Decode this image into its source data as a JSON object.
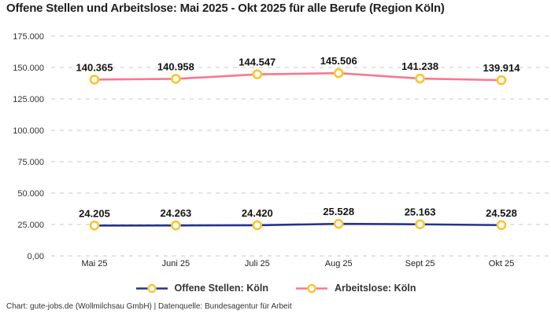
{
  "title": "Offene Stellen und Arbeitslose: Mai 2025 - Okt 2025 für alle Berufe (Region Köln)",
  "footer": "Chart: gute-jobs.de (Wollmilchsau GmbH) | Datenquelle: Bundesagentur für Arbeit",
  "colors": {
    "offene_stellen_line": "#25338c",
    "arbeitslose_line": "#f8788e",
    "marker_ring": "#fcc42d",
    "marker_fill": "#ffffff",
    "gridline": "#c8c8c8",
    "label_text": "#141414"
  },
  "chart_data": {
    "type": "line",
    "title": "Offene Stellen und Arbeitslose: Mai 2025 - Okt 2025 für alle Berufe (Region Köln)",
    "categories": [
      "Mai 25",
      "Juni 25",
      "Juli 25",
      "Aug 25",
      "Sept 25",
      "Okt 25"
    ],
    "series": [
      {
        "id": "offene-stellen-koeln",
        "name": "Offene Stellen: Köln",
        "color": "#25338c",
        "values": [
          24205,
          24263,
          24420,
          25528,
          25163,
          24528
        ],
        "labels": [
          "24.205",
          "24.263",
          "24.420",
          "25.528",
          "25.163",
          "24.528"
        ]
      },
      {
        "id": "arbeitslose-koeln",
        "name": "Arbeitslose: Köln",
        "color": "#f8788e",
        "values": [
          140365,
          140958,
          144547,
          145506,
          141238,
          139914
        ],
        "labels": [
          "140.365",
          "140.958",
          "144.547",
          "145.506",
          "141.238",
          "139.914"
        ]
      }
    ],
    "marker_color": "#fcc42d",
    "y_axis": {
      "range": [
        0,
        175000
      ],
      "ticks": [
        {
          "label": "175.000",
          "value": 175000
        },
        {
          "label": "150.000",
          "value": 150000
        },
        {
          "label": "125.000",
          "value": 125000
        },
        {
          "label": "100.000",
          "value": 100000
        },
        {
          "label": "75.000",
          "value": 75000
        },
        {
          "label": "50.000",
          "value": 50000
        },
        {
          "label": "25.000",
          "value": 25000
        },
        {
          "label": "0,00",
          "value": 0
        }
      ]
    },
    "grid": "dashed-horizontal",
    "legend_position": "bottom"
  }
}
